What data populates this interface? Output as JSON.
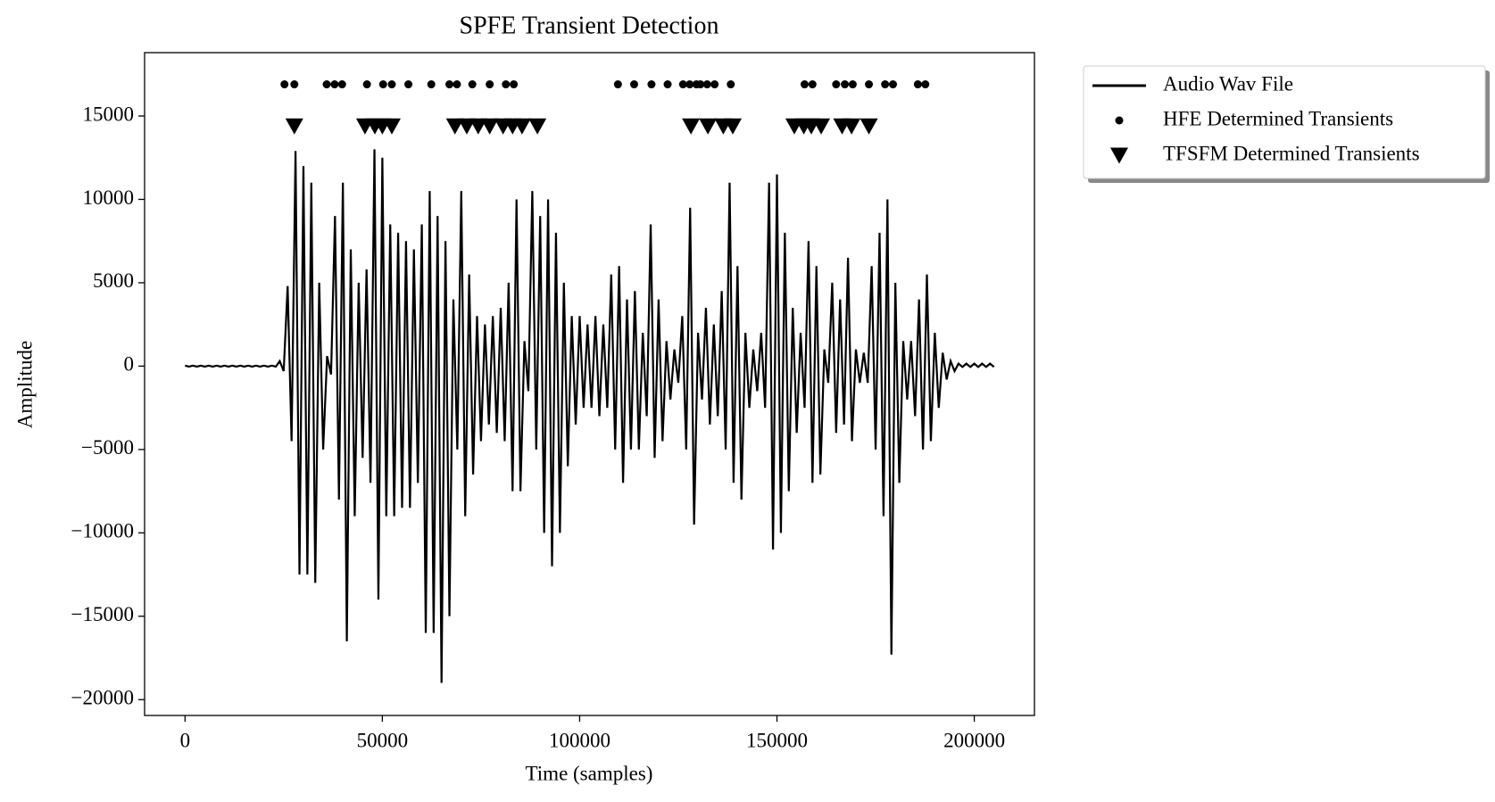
{
  "chart_data": {
    "type": "line",
    "title": "SPFE Transient Detection",
    "x_label": "Time (samples)",
    "y_label": "Amplitude",
    "xlim": [
      -10250,
      215250
    ],
    "ylim": [
      -20950,
      18800
    ],
    "xticks": [
      0,
      50000,
      100000,
      150000,
      200000
    ],
    "yticks": [
      {
        "value": -20000,
        "label": "−20000"
      },
      {
        "value": -15000,
        "label": "−15000"
      },
      {
        "value": -10000,
        "label": "−10000"
      },
      {
        "value": -5000,
        "label": "−5000"
      },
      0,
      5000,
      10000,
      15000
    ],
    "legend": "outside-right",
    "grid": false,
    "series": [
      {
        "name": "Audio Wav File",
        "type": "line",
        "color": "#000000",
        "x": [
          0,
          1000,
          2000,
          3000,
          4000,
          5000,
          6000,
          7000,
          8000,
          9000,
          10000,
          11000,
          12000,
          13000,
          14000,
          15000,
          16000,
          17000,
          18000,
          19000,
          20000,
          21000,
          22000,
          23000,
          24000,
          25000,
          26000,
          27000,
          28000,
          29000,
          30000,
          31000,
          32000,
          33000,
          34000,
          35000,
          36000,
          37000,
          38000,
          39000,
          40000,
          41000,
          42000,
          43000,
          44000,
          45000,
          46000,
          47000,
          48000,
          49000,
          50000,
          51000,
          52000,
          53000,
          54000,
          55000,
          56000,
          57000,
          58000,
          59000,
          60000,
          61000,
          62000,
          63000,
          64000,
          65000,
          66000,
          67000,
          68000,
          69000,
          70000,
          71000,
          72000,
          73000,
          74000,
          75000,
          76000,
          77000,
          78000,
          79000,
          80000,
          81000,
          82000,
          83000,
          84000,
          85000,
          86000,
          87000,
          88000,
          89000,
          90000,
          91000,
          92000,
          93000,
          94000,
          95000,
          96000,
          97000,
          98000,
          99000,
          100000,
          101000,
          102000,
          103000,
          104000,
          105000,
          106000,
          107000,
          108000,
          109000,
          110000,
          111000,
          112000,
          113000,
          114000,
          115000,
          116000,
          117000,
          118000,
          119000,
          120000,
          121000,
          122000,
          123000,
          124000,
          125000,
          126000,
          127000,
          128000,
          129000,
          130000,
          131000,
          132000,
          133000,
          134000,
          135000,
          136000,
          137000,
          138000,
          139000,
          140000,
          141000,
          142000,
          143000,
          144000,
          145000,
          146000,
          147000,
          148000,
          149000,
          150000,
          151000,
          152000,
          153000,
          154000,
          155000,
          156000,
          157000,
          158000,
          159000,
          160000,
          161000,
          162000,
          163000,
          164000,
          165000,
          166000,
          167000,
          168000,
          169000,
          170000,
          171000,
          172000,
          173000,
          174000,
          175000,
          176000,
          177000,
          178000,
          179000,
          180000,
          181000,
          182000,
          183000,
          184000,
          185000,
          186000,
          187000,
          188000,
          189000,
          190000,
          191000,
          192000,
          193000,
          194000,
          195000,
          196000,
          197000,
          198000,
          199000,
          200000,
          201000,
          202000,
          203000,
          204000,
          205000
        ],
        "values": [
          30,
          -30,
          30,
          -30,
          30,
          -30,
          30,
          -30,
          30,
          -30,
          30,
          -30,
          30,
          -30,
          30,
          -30,
          30,
          -30,
          30,
          -30,
          30,
          -30,
          30,
          -30,
          300,
          -300,
          4800,
          -4500,
          12900,
          -12500,
          12000,
          -12500,
          11000,
          -13000,
          5000,
          -5000,
          600,
          -500,
          9000,
          -8000,
          11000,
          -16500,
          7000,
          -9000,
          5000,
          -5500,
          5800,
          -7000,
          13000,
          -14000,
          12500,
          -9000,
          8500,
          -9000,
          8000,
          -8500,
          7500,
          -8500,
          7000,
          -7000,
          8500,
          -16000,
          10500,
          -16000,
          9000,
          -19000,
          7500,
          -15000,
          4000,
          -5000,
          10500,
          -9000,
          5500,
          -6500,
          3000,
          -4500,
          2500,
          -3500,
          3000,
          -4000,
          3500,
          -4500,
          5000,
          -7500,
          10000,
          -7500,
          1500,
          -1500,
          10500,
          -5000,
          9000,
          -10000,
          10000,
          -12000,
          8000,
          -10000,
          5000,
          -6000,
          3000,
          -3500,
          3000,
          -2500,
          2500,
          -2500,
          3000,
          -3000,
          2500,
          -2500,
          5500,
          -5000,
          6000,
          -7000,
          4000,
          -5000,
          4500,
          -5000,
          2000,
          -3000,
          8500,
          -5500,
          4000,
          -4500,
          1500,
          -2000,
          1000,
          -1000,
          3000,
          -5000,
          9500,
          -9500,
          2000,
          -2000,
          3500,
          -3500,
          2500,
          -3000,
          4500,
          -5000,
          11000,
          -7000,
          6000,
          -8000,
          2000,
          -2500,
          1000,
          -1500,
          2000,
          -2500,
          11000,
          -11000,
          11500,
          -10000,
          8000,
          -7500,
          3500,
          -4000,
          2000,
          -2500,
          7500,
          -7000,
          6000,
          -6500,
          1000,
          -1000,
          5000,
          -4000,
          4000,
          -3500,
          6500,
          -4500,
          1000,
          -1000,
          800,
          -1000,
          6000,
          -5000,
          8000,
          -9000,
          10000,
          -17300,
          5000,
          -7000,
          1500,
          -2000,
          1500,
          -3000,
          4000,
          -5000,
          5500,
          -4500,
          2000,
          -2500,
          800,
          -800,
          300,
          -300,
          150,
          -50,
          150,
          -50,
          150,
          -50,
          150,
          -50,
          150,
          -50
        ]
      },
      {
        "name": "HFE Determined Transients",
        "type": "scatter",
        "marker": "circle",
        "color": "#000000",
        "x": [
          25200,
          27700,
          35900,
          37900,
          39800,
          46100,
          50200,
          52400,
          56600,
          62400,
          67000,
          68900,
          72800,
          77200,
          81300,
          83300,
          109700,
          113800,
          118200,
          122300,
          126200,
          127900,
          129600,
          130600,
          132300,
          134200,
          138300,
          157000,
          159000,
          165000,
          167200,
          169200,
          173300,
          177400,
          179400,
          185700,
          187600
        ],
        "values": [
          16900,
          16900,
          16900,
          16900,
          16900,
          16900,
          16900,
          16900,
          16900,
          16900,
          16900,
          16900,
          16900,
          16900,
          16900,
          16900,
          16900,
          16900,
          16900,
          16900,
          16900,
          16900,
          16900,
          16900,
          16900,
          16900,
          16900,
          16900,
          16900,
          16900,
          16900,
          16900,
          16900,
          16900,
          16900,
          16900,
          16900
        ]
      },
      {
        "name": "TFSFM Determined Transients",
        "type": "scatter",
        "marker": "triangle-down",
        "color": "#000000",
        "x": [
          27700,
          45600,
          48100,
          50000,
          52400,
          68400,
          71400,
          74300,
          77200,
          80600,
          83000,
          85400,
          89300,
          128200,
          132500,
          136400,
          138800,
          154400,
          156800,
          158700,
          161200,
          166500,
          168900,
          173300
        ],
        "values": [
          14400,
          14400,
          14400,
          14400,
          14400,
          14400,
          14400,
          14400,
          14400,
          14400,
          14400,
          14400,
          14400,
          14400,
          14400,
          14400,
          14400,
          14400,
          14400,
          14400,
          14400,
          14400,
          14400,
          14400
        ]
      }
    ]
  }
}
